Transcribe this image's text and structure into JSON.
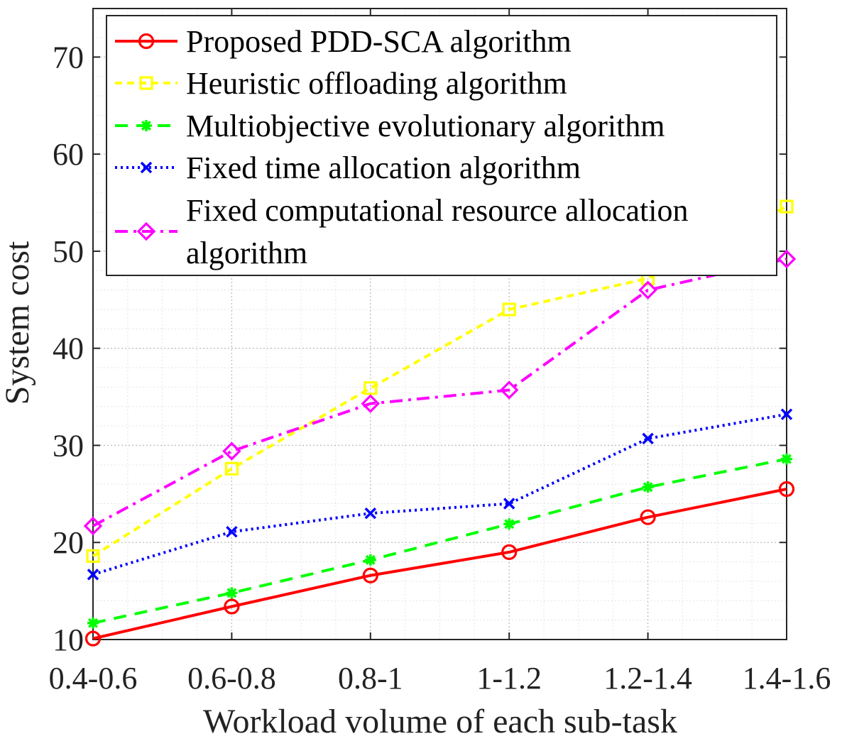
{
  "chart_data": {
    "type": "line",
    "xlabel": "Workload volume of each sub-task",
    "ylabel": "System cost",
    "categories": [
      "0.4-0.6",
      "0.6-0.8",
      "0.8-1",
      "1-1.2",
      "1.2-1.4",
      "1.4-1.6"
    ],
    "ylim": [
      10,
      75
    ],
    "yticks": [
      10,
      20,
      30,
      40,
      50,
      60,
      70
    ],
    "grid": true,
    "legend_position": "top-left",
    "series": [
      {
        "name": "Proposed PDD-SCA algorithm",
        "color": "#ff0000",
        "dash": "solid",
        "marker": "circle",
        "values": [
          10.1,
          13.4,
          16.6,
          19.0,
          22.6,
          25.5
        ]
      },
      {
        "name": "Heuristic offloading algorithm",
        "color": "#ffff00",
        "dash": "dashed-short",
        "marker": "square",
        "values": [
          18.6,
          27.6,
          35.9,
          44.0,
          47.2,
          54.6
        ]
      },
      {
        "name": "Multiobjective evolutionary algorithm",
        "color": "#00ff00",
        "dash": "dashed",
        "marker": "asterisk",
        "values": [
          11.7,
          14.8,
          18.2,
          21.9,
          25.7,
          28.6
        ]
      },
      {
        "name": "Fixed time allocation algorithm",
        "color": "#0000ff",
        "dash": "dotted",
        "marker": "x",
        "values": [
          16.7,
          21.1,
          23.0,
          24.0,
          30.7,
          33.2
        ]
      },
      {
        "name": "Fixed computational resource allocation algorithm",
        "legend_lines": [
          "Fixed computational resource allocation",
          "algorithm"
        ],
        "color": "#ff00ff",
        "dash": "dash-dot",
        "marker": "diamond",
        "values": [
          21.7,
          29.4,
          34.3,
          35.7,
          46.0,
          49.2
        ]
      }
    ]
  }
}
